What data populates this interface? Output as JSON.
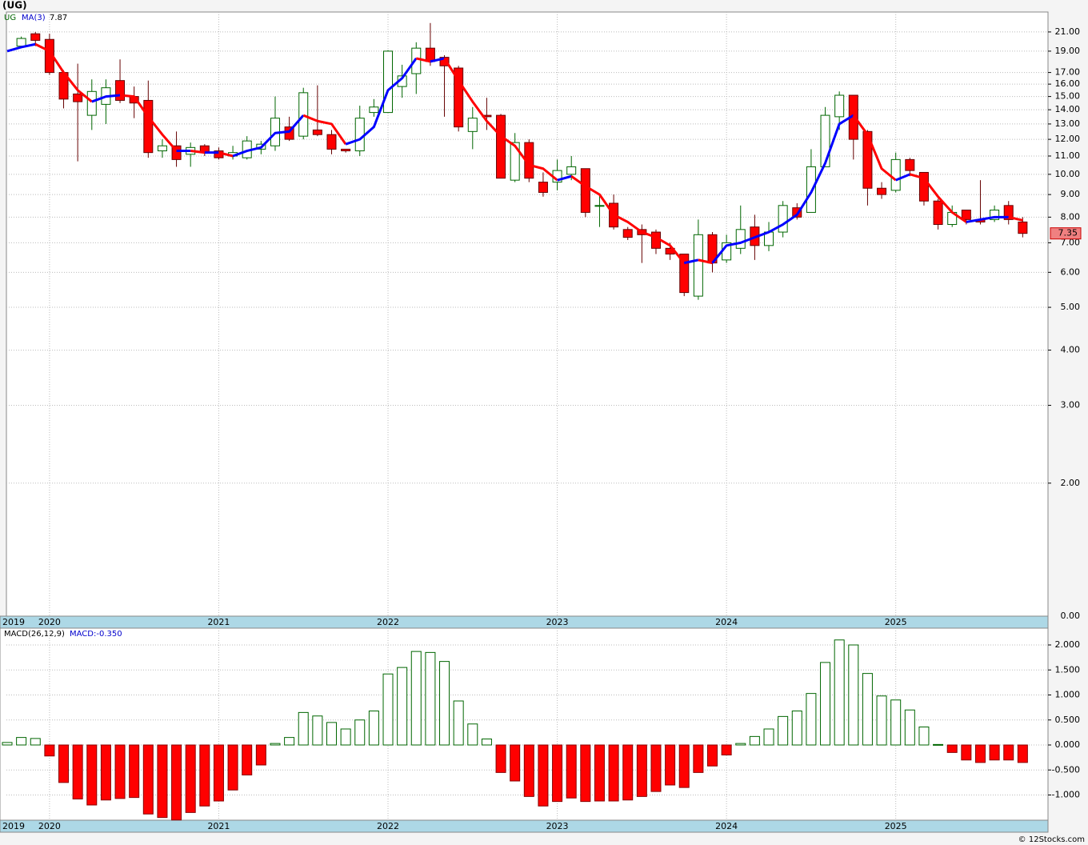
{
  "header": {
    "title": "(UG)"
  },
  "chart_data": [
    {
      "type": "candlestick",
      "legend": {
        "ticker": "UG",
        "ma_name": "MA(3)"
      },
      "categories": [
        "2019",
        null,
        null,
        "2020",
        null,
        null,
        null,
        null,
        null,
        null,
        null,
        null,
        null,
        null,
        null,
        "2021",
        null,
        null,
        null,
        null,
        null,
        null,
        null,
        null,
        null,
        null,
        null,
        "2022",
        null,
        null,
        null,
        null,
        null,
        null,
        null,
        null,
        null,
        null,
        null,
        "2023",
        null,
        null,
        null,
        null,
        null,
        null,
        null,
        null,
        null,
        null,
        null,
        "2024",
        null,
        null,
        null,
        null,
        null,
        null,
        null,
        null,
        null,
        null,
        null,
        "2025",
        null,
        null,
        null,
        null,
        null,
        null,
        null,
        null,
        null
      ],
      "open": [
        null,
        19.5,
        20.8,
        20.2,
        17.0,
        15.2,
        13.6,
        14.4,
        16.3,
        15.0,
        14.7,
        11.3,
        11.6,
        11.1,
        11.6,
        11.3,
        11.0,
        10.9,
        11.4,
        11.6,
        12.8,
        12.2,
        12.6,
        12.3,
        11.4,
        11.3,
        13.8,
        13.8,
        15.8,
        16.9,
        19.3,
        18.4,
        17.4,
        12.5,
        13.6,
        13.6,
        9.7,
        11.8,
        9.6,
        9.6,
        10.0,
        10.3,
        8.5,
        8.6,
        7.5,
        7.5,
        7.4,
        6.8,
        6.6,
        5.3,
        7.3,
        6.4,
        6.8,
        7.6,
        6.9,
        7.4,
        8.4,
        8.2,
        10.4,
        13.5,
        15.1,
        12.5,
        9.3,
        9.2,
        10.8,
        10.1,
        8.7,
        7.7,
        8.3,
        7.9,
        7.9,
        8.5,
        7.8
      ],
      "high": [
        null,
        20.5,
        21.0,
        20.8,
        17.2,
        17.8,
        16.4,
        16.4,
        18.2,
        15.8,
        16.3,
        12.0,
        12.5,
        11.8,
        11.7,
        11.5,
        11.6,
        12.2,
        11.9,
        15.0,
        13.5,
        15.7,
        15.9,
        12.6,
        11.4,
        14.3,
        14.8,
        19.1,
        17.7,
        19.9,
        22.0,
        18.6,
        17.6,
        14.2,
        14.9,
        13.7,
        12.4,
        12.0,
        10.1,
        10.8,
        11.0,
        10.3,
        9.0,
        9.0,
        7.6,
        7.7,
        7.5,
        7.0,
        6.6,
        7.9,
        7.4,
        7.3,
        8.5,
        8.1,
        7.8,
        8.7,
        8.6,
        11.4,
        14.2,
        15.4,
        15.1,
        12.6,
        9.6,
        11.2,
        10.9,
        10.1,
        8.8,
        8.5,
        8.3,
        9.7,
        8.5,
        8.7,
        8.0
      ],
      "low": [
        null,
        19.3,
        19.5,
        16.8,
        14.1,
        10.7,
        12.6,
        13.0,
        14.5,
        13.4,
        10.9,
        10.9,
        10.4,
        10.4,
        11.0,
        10.8,
        10.8,
        10.8,
        11.1,
        11.3,
        11.9,
        12.0,
        12.2,
        11.1,
        11.2,
        11.0,
        13.5,
        13.8,
        14.9,
        15.2,
        17.6,
        13.5,
        12.5,
        11.4,
        12.6,
        9.8,
        9.6,
        9.6,
        8.9,
        9.2,
        9.7,
        8.0,
        7.6,
        7.5,
        7.1,
        6.3,
        6.6,
        6.4,
        5.3,
        5.2,
        6.0,
        6.3,
        6.6,
        6.4,
        6.7,
        7.2,
        7.9,
        8.2,
        10.4,
        12.6,
        10.8,
        8.5,
        8.8,
        9.1,
        9.9,
        8.5,
        7.5,
        7.6,
        7.7,
        7.7,
        7.8,
        7.7,
        7.2
      ],
      "close": [
        null,
        20.3,
        20.1,
        17.0,
        14.8,
        14.6,
        15.4,
        15.7,
        14.7,
        14.5,
        11.2,
        11.6,
        10.8,
        11.5,
        11.2,
        10.9,
        11.2,
        11.9,
        11.7,
        13.4,
        12.0,
        15.3,
        12.3,
        11.4,
        11.3,
        13.4,
        14.2,
        19.0,
        16.7,
        19.3,
        18.0,
        17.6,
        12.8,
        13.4,
        13.5,
        9.8,
        11.8,
        9.8,
        9.1,
        10.2,
        10.4,
        8.2,
        8.5,
        7.6,
        7.2,
        7.3,
        6.8,
        6.6,
        5.4,
        7.3,
        6.3,
        7.0,
        7.5,
        6.9,
        7.4,
        8.5,
        8.0,
        10.4,
        13.6,
        15.1,
        12.0,
        9.3,
        9.0,
        10.8,
        10.2,
        8.7,
        7.7,
        8.2,
        7.9,
        7.8,
        8.3,
        7.9,
        7.35
      ],
      "up_color": "#006600",
      "down_color": "#ff0000",
      "ma": {
        "values": [
          19.0,
          19.4,
          19.7,
          19.0,
          17.0,
          15.5,
          14.6,
          15.0,
          15.1,
          15.0,
          13.5,
          12.3,
          11.3,
          11.3,
          11.2,
          11.2,
          11.0,
          11.3,
          11.5,
          12.4,
          12.5,
          13.6,
          13.2,
          13.0,
          11.7,
          12.0,
          12.8,
          15.5,
          16.5,
          18.3,
          18.0,
          18.3,
          16.3,
          14.6,
          13.2,
          12.2,
          11.6,
          10.5,
          10.3,
          9.7,
          9.9,
          9.4,
          9.0,
          8.1,
          7.8,
          7.4,
          7.2,
          6.9,
          6.3,
          6.4,
          6.3,
          6.9,
          7.0,
          7.2,
          7.4,
          7.7,
          8.1,
          9.1,
          10.6,
          13.0,
          13.6,
          12.3,
          10.3,
          9.7,
          10.0,
          9.8,
          8.9,
          8.2,
          7.8,
          7.9,
          8.0,
          8.0,
          7.87
        ],
        "up_color": "#0000ff",
        "down_color": "#ff0000"
      },
      "log_scale": true,
      "grid": true,
      "ylim": [
        1,
        23.3
      ],
      "yticks": [
        {
          "value": 21,
          "label": "21.00"
        },
        {
          "value": 19,
          "label": "19.00"
        },
        {
          "value": 17,
          "label": "17.00"
        },
        {
          "value": 16,
          "label": "16.00"
        },
        {
          "value": 15,
          "label": "15.00"
        },
        {
          "value": 14,
          "label": "14.00"
        },
        {
          "value": 13,
          "label": "13.00"
        },
        {
          "value": 12,
          "label": "12.00"
        },
        {
          "value": 11,
          "label": "11.00"
        },
        {
          "value": 10,
          "label": "10.00"
        },
        {
          "value": 9,
          "label": "9.00"
        },
        {
          "value": 8,
          "label": "8.00"
        },
        {
          "value": 7,
          "label": "7.00"
        },
        {
          "value": 6,
          "label": "6.00"
        },
        {
          "value": 5,
          "label": "5.00"
        },
        {
          "value": 4,
          "label": "4.00"
        },
        {
          "value": 3,
          "label": "3.00"
        },
        {
          "value": 2,
          "label": "2.00"
        }
      ],
      "floor_label": "0.00"
    },
    {
      "type": "bar",
      "title": "MACD(26,12,9)",
      "value_text": "MACD:-0.350",
      "categories": [
        "2019",
        null,
        null,
        "2020",
        null,
        null,
        null,
        null,
        null,
        null,
        null,
        null,
        null,
        null,
        null,
        "2021",
        null,
        null,
        null,
        null,
        null,
        null,
        null,
        null,
        null,
        null,
        null,
        "2022",
        null,
        null,
        null,
        null,
        null,
        null,
        null,
        null,
        null,
        null,
        null,
        "2023",
        null,
        null,
        null,
        null,
        null,
        null,
        null,
        null,
        null,
        null,
        null,
        "2024",
        null,
        null,
        null,
        null,
        null,
        null,
        null,
        null,
        null,
        null,
        null,
        "2025",
        null,
        null,
        null,
        null,
        null,
        null,
        null,
        null,
        null
      ],
      "values": [
        0.05,
        0.15,
        0.13,
        -0.22,
        -0.75,
        -1.08,
        -1.2,
        -1.1,
        -1.07,
        -1.05,
        -1.38,
        -1.45,
        -1.5,
        -1.35,
        -1.22,
        -1.12,
        -0.9,
        -0.6,
        -0.4,
        0.03,
        0.15,
        0.65,
        0.58,
        0.45,
        0.32,
        0.5,
        0.68,
        1.42,
        1.55,
        1.87,
        1.85,
        1.67,
        0.88,
        0.42,
        0.12,
        -0.55,
        -0.72,
        -1.03,
        -1.22,
        -1.13,
        -1.06,
        -1.13,
        -1.12,
        -1.12,
        -1.1,
        -1.03,
        -0.93,
        -0.8,
        -0.85,
        -0.55,
        -0.42,
        -0.2,
        0.03,
        0.17,
        0.32,
        0.57,
        0.68,
        1.03,
        1.65,
        2.1,
        2.0,
        1.43,
        0.98,
        0.9,
        0.7,
        0.36,
        0.01,
        -0.15,
        -0.3,
        -0.35,
        -0.3,
        -0.3,
        -0.35
      ],
      "up_color": "#006600",
      "down_color": "#ff0000",
      "grid": true,
      "ylim": [
        -1.504,
        2.336
      ],
      "yticks": [
        {
          "value": 2,
          "label": "2.000"
        },
        {
          "value": 1.5,
          "label": "1.500"
        },
        {
          "value": 1,
          "label": "1.000"
        },
        {
          "value": 0.5,
          "label": "0.500"
        },
        {
          "value": 0,
          "label": "0.000"
        },
        {
          "value": -0.5,
          "label": "-0.500"
        },
        {
          "value": -1,
          "label": "-1.000"
        }
      ]
    }
  ],
  "footer": "© 12Stocks.com"
}
